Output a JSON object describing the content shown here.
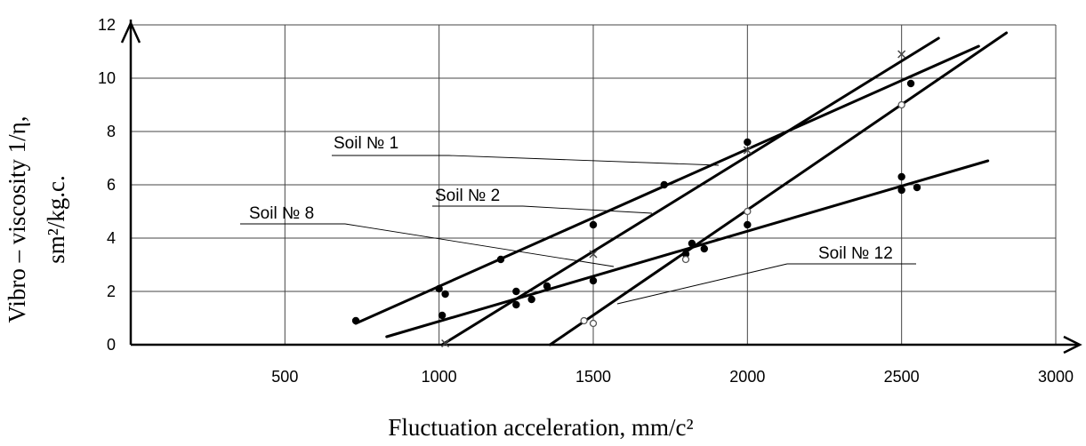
{
  "chart_data": {
    "type": "scatter",
    "title": "",
    "xlabel": "Fluctuation acceleration, mm/c²",
    "ylabel_line1": "Vibro – viscosity 1/η,",
    "ylabel_line2": "sm²/kg.c.",
    "xlim": [
      0,
      3000
    ],
    "ylim": [
      0,
      12
    ],
    "x_ticks": [
      "500",
      "1000",
      "1500",
      "2000",
      "2500",
      "3000"
    ],
    "y_ticks": [
      "0",
      "2",
      "4",
      "6",
      "8",
      "10",
      "12"
    ],
    "grid": true,
    "series": [
      {
        "name": "Soil № 1",
        "points": [
          [
            730,
            0.9
          ],
          [
            1000,
            2.1
          ],
          [
            1020,
            1.9
          ],
          [
            1200,
            3.2
          ],
          [
            1500,
            4.5
          ],
          [
            1730,
            6.0
          ],
          [
            2000,
            7.6
          ],
          [
            2530,
            9.8
          ]
        ],
        "fit": [
          [
            730,
            0.8
          ],
          [
            2750,
            11.2
          ]
        ]
      },
      {
        "name": "Soil № 2",
        "points": [
          [
            1020,
            0.05
          ],
          [
            1500,
            3.4
          ],
          [
            2000,
            7.3
          ],
          [
            2500,
            10.9
          ]
        ],
        "fit": [
          [
            1010,
            0.0
          ],
          [
            2620,
            11.5
          ]
        ]
      },
      {
        "name": "Soil № 8",
        "points": [
          [
            1010,
            1.1
          ],
          [
            1250,
            1.5
          ],
          [
            1250,
            2.0
          ],
          [
            1300,
            1.7
          ],
          [
            1350,
            2.2
          ],
          [
            1500,
            2.4
          ],
          [
            1800,
            3.4
          ],
          [
            1820,
            3.8
          ],
          [
            1860,
            3.6
          ],
          [
            2000,
            4.5
          ],
          [
            2500,
            6.3
          ],
          [
            2500,
            5.8
          ],
          [
            2550,
            5.9
          ]
        ],
        "fit": [
          [
            830,
            0.3
          ],
          [
            2780,
            6.9
          ]
        ]
      },
      {
        "name": "Soil № 12",
        "points": [
          [
            1470,
            0.9
          ],
          [
            1500,
            0.8
          ],
          [
            1800,
            3.2
          ],
          [
            2000,
            5.0
          ],
          [
            2500,
            9.0
          ]
        ],
        "fit": [
          [
            1360,
            0.0
          ],
          [
            2840,
            11.7
          ]
        ]
      }
    ],
    "annotations": [
      {
        "text": "Soil № 1",
        "series": 0
      },
      {
        "text": "Soil № 2",
        "series": 1
      },
      {
        "text": "Soil № 8",
        "series": 2
      },
      {
        "text": "Soil № 12",
        "series": 3
      }
    ]
  }
}
